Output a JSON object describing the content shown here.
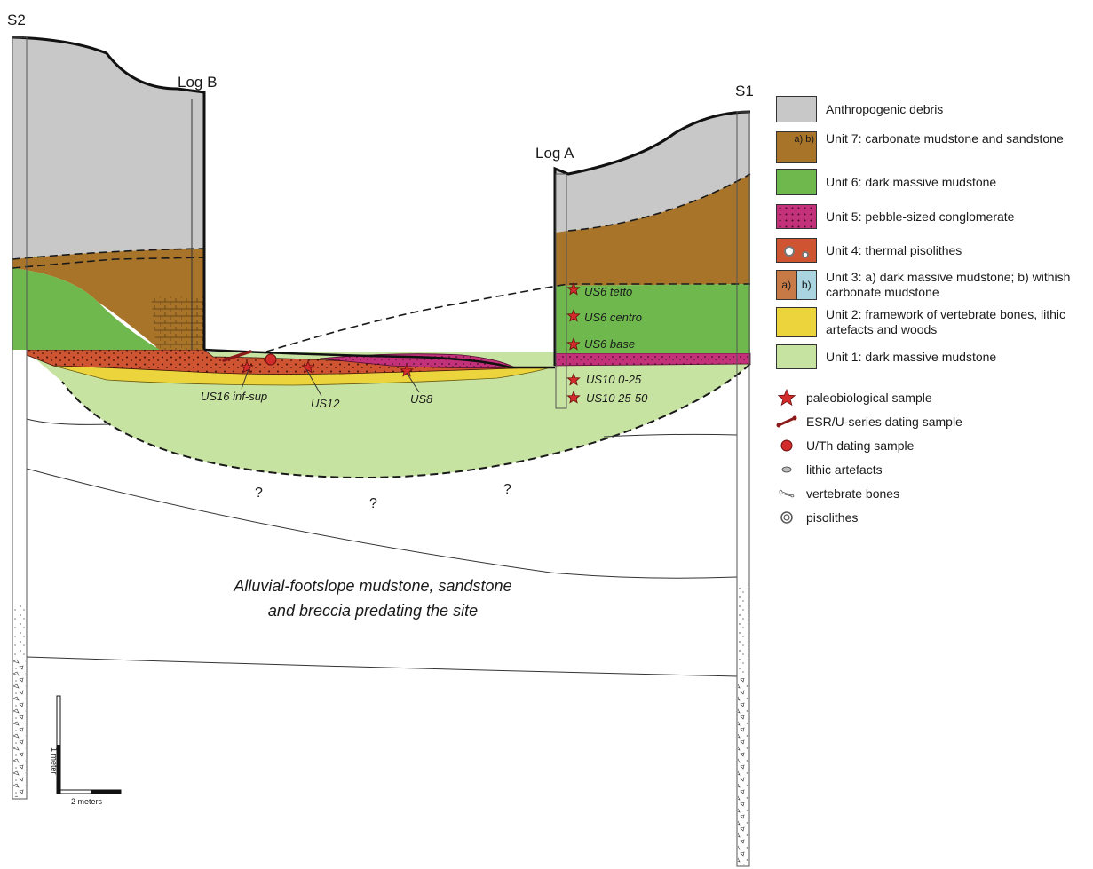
{
  "labels": {
    "s2": "S2",
    "s1": "S1",
    "log_a": "Log A",
    "log_b": "Log B",
    "predating_line1": "Alluvial-footslope mudstone, sandstone",
    "predating_line2": "and breccia predating the site",
    "question": "?"
  },
  "samples": {
    "us6_tetto": "US6 tetto",
    "us6_centro": "US6 centro",
    "us6_base": "US6 base",
    "us10_0_25": "US10 0-25",
    "us10_25_50": "US10 25-50",
    "us16": "US16 inf-sup",
    "us12": "US12",
    "us8": "US8"
  },
  "scale": {
    "vertical": "1 meter",
    "horizontal": "2 meters"
  },
  "legend": {
    "units": [
      {
        "text": "Anthropogenic debris",
        "color": "#c8c8c8"
      },
      {
        "text": "Unit 7: carbonate mudstone and sandstone",
        "color": "#a8742a",
        "marks": "a) b)"
      },
      {
        "text": "Unit 6: dark massive mudstone",
        "color": "#6fb84e"
      },
      {
        "text": "Unit 5: pebble-sized conglomerate",
        "color": "#c2317a"
      },
      {
        "text": "Unit 4: thermal pisolithes",
        "color": "#cf5431"
      },
      {
        "text": "Unit 3: a) dark massive mudstone; b) withish carbonate mudstone",
        "color": "#c77a45",
        "color_b": "#a9d4e0",
        "mark_a": "a)",
        "mark_b": "b)"
      },
      {
        "text": "Unit 2: framework of vertebrate bones, lithic artefacts and woods",
        "color": "#ecd43c"
      },
      {
        "text": "Unit 1: dark massive mudstone",
        "color": "#c7e3a1"
      }
    ],
    "symbols": [
      {
        "icon": "star-icon",
        "text": "paleobiological sample"
      },
      {
        "icon": "bone-icon",
        "text": "ESR/U-series dating sample"
      },
      {
        "icon": "circle-icon",
        "text": "U/Th dating sample"
      },
      {
        "icon": "lithic-icon",
        "text": "lithic artefacts"
      },
      {
        "icon": "vertebrate-bone-icon",
        "text": "vertebrate bones"
      },
      {
        "icon": "pisolith-icon",
        "text": "pisolithes"
      }
    ]
  }
}
